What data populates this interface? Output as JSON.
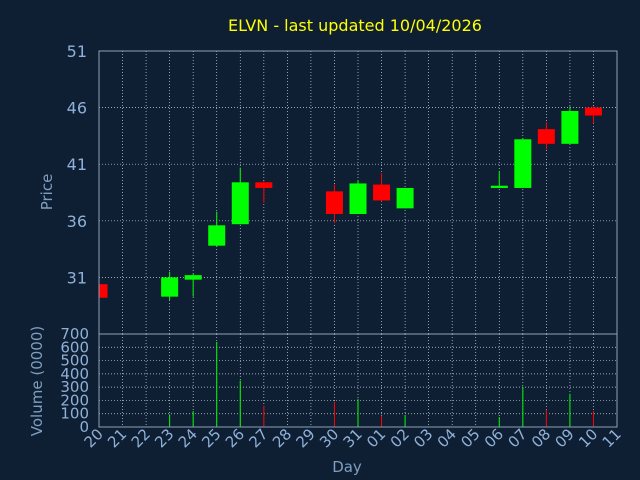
{
  "colors": {
    "background": "#0f1f33",
    "title": "#ffff00",
    "axis_label": "#7f9fc0",
    "tick_label": "#8fb0d8",
    "frame": "#8fa0b4",
    "grid": "#c8d4e0",
    "up": "#00ff00",
    "down": "#ff0000"
  },
  "chart_data": {
    "type": "candlestick",
    "title": "ELVN - last updated 10/04/2026",
    "xlabel": "Day",
    "price": {
      "ylabel": "Price",
      "ylim": [
        26,
        51
      ],
      "yticks": [
        31,
        36,
        41,
        46,
        51
      ]
    },
    "volume": {
      "ylabel": "Volume (0000)",
      "ylim": [
        0,
        700
      ],
      "yticks": [
        0,
        100,
        200,
        300,
        400,
        500,
        600,
        700
      ]
    },
    "x_ticks": [
      "20",
      "21",
      "22",
      "23",
      "24",
      "25",
      "26",
      "27",
      "28",
      "29",
      "30",
      "31",
      "01",
      "02",
      "03",
      "04",
      "05",
      "06",
      "07",
      "08",
      "09",
      "10",
      "11"
    ],
    "grid": true,
    "candles": [
      {
        "day": "20",
        "open": 30.4,
        "close": 29.2,
        "high": 30.4,
        "low": 29.2,
        "volume": 0
      },
      {
        "day": "23",
        "open": 29.3,
        "close": 31.0,
        "high": 31.5,
        "low": 29.0,
        "volume": 95
      },
      {
        "day": "24",
        "open": 30.8,
        "close": 31.2,
        "high": 31.3,
        "low": 29.3,
        "volume": 120
      },
      {
        "day": "25",
        "open": 33.8,
        "close": 35.6,
        "high": 36.8,
        "low": 33.7,
        "volume": 640
      },
      {
        "day": "26",
        "open": 35.7,
        "close": 39.4,
        "high": 40.7,
        "low": 35.7,
        "volume": 350
      },
      {
        "day": "27",
        "open": 39.4,
        "close": 38.9,
        "high": 39.5,
        "low": 37.6,
        "volume": 160
      },
      {
        "day": "30",
        "open": 38.6,
        "close": 36.6,
        "high": 39.2,
        "low": 35.8,
        "volume": 190
      },
      {
        "day": "31",
        "open": 36.6,
        "close": 39.3,
        "high": 39.6,
        "low": 36.6,
        "volume": 210
      },
      {
        "day": "01",
        "open": 39.2,
        "close": 37.8,
        "high": 40.2,
        "low": 37.7,
        "volume": 85
      },
      {
        "day": "02",
        "open": 37.1,
        "close": 38.9,
        "high": 38.9,
        "low": 37.1,
        "volume": 90
      },
      {
        "day": "06",
        "open": 38.9,
        "close": 39.1,
        "high": 40.4,
        "low": 38.9,
        "volume": 75
      },
      {
        "day": "07",
        "open": 38.9,
        "close": 43.2,
        "high": 43.3,
        "low": 38.9,
        "volume": 300
      },
      {
        "day": "08",
        "open": 44.1,
        "close": 42.8,
        "high": 44.7,
        "low": 42.3,
        "volume": 130
      },
      {
        "day": "09",
        "open": 42.8,
        "close": 45.7,
        "high": 46.1,
        "low": 42.8,
        "volume": 250
      },
      {
        "day": "10",
        "open": 46.0,
        "close": 45.3,
        "high": 46.1,
        "low": 44.6,
        "volume": 120
      }
    ]
  }
}
